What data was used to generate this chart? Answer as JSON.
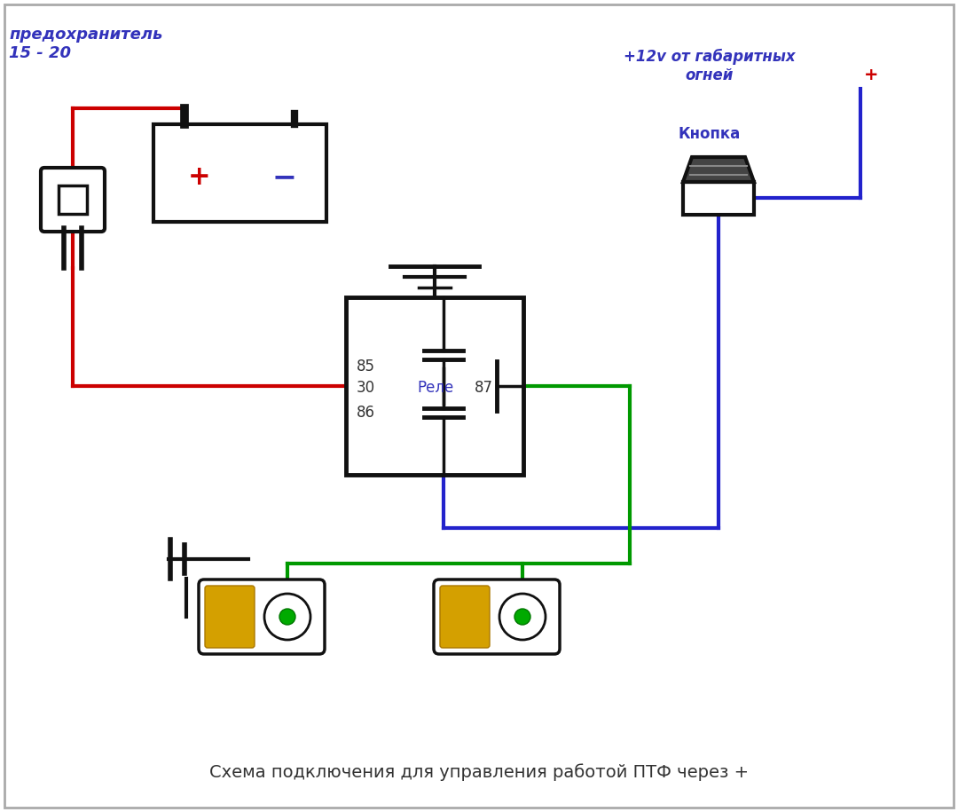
{
  "bg_color": "#ffffff",
  "title_text": "Схема подключения для управления работой ПТФ через +",
  "title_color": "#333333",
  "title_fontsize": 14,
  "fuse_label": "предохранитель\n15 - 20",
  "fuse_label_color": "#3333bb",
  "voltage_label": "+12v от габаритных\nогней",
  "voltage_label_color": "#3333bb",
  "button_label": "Кнопка",
  "button_label_color": "#3333bb",
  "relay_label": "Реле",
  "relay_label_color": "#3333bb",
  "pin85": "85",
  "pin86": "86",
  "pin30": "30",
  "pin87": "87",
  "pin_color": "#333333",
  "plus_color": "#cc0000",
  "minus_color": "#3333bb",
  "wire_red": "#cc0000",
  "wire_blue": "#2222cc",
  "wire_green": "#009900",
  "wire_black": "#111111",
  "lw": 2.5
}
